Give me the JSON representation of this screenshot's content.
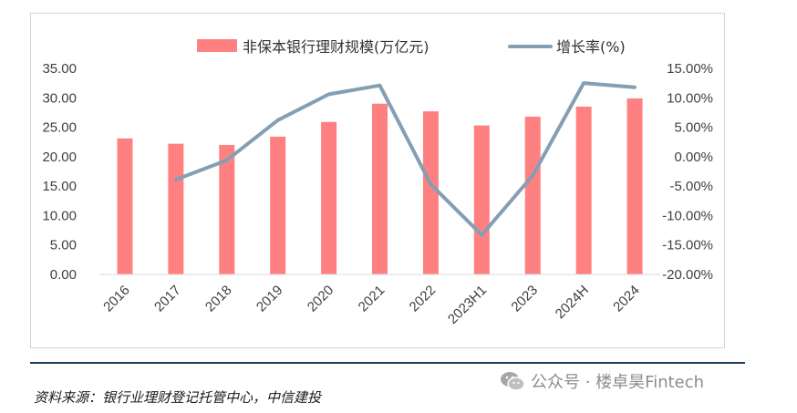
{
  "chart_data": {
    "type": "bar+line",
    "categories": [
      "2016",
      "2017",
      "2018",
      "2019",
      "2020",
      "2021",
      "2022",
      "2023H1",
      "2023",
      "2024H",
      "2024"
    ],
    "series": [
      {
        "name": "非保本银行理财规模(万亿元)",
        "type": "bar",
        "axis": "left",
        "color": "#ff8080",
        "values": [
          23.1,
          22.2,
          22.0,
          23.4,
          25.9,
          29.0,
          27.7,
          25.3,
          26.8,
          28.5,
          29.9
        ]
      },
      {
        "name": "增长率(%)",
        "type": "line",
        "axis": "right",
        "color": "#849fb3",
        "values": [
          null,
          -3.9,
          -0.6,
          6.2,
          10.6,
          12.1,
          -4.7,
          -13.3,
          -3.2,
          12.5,
          11.8
        ]
      }
    ],
    "left_axis": {
      "min": 0,
      "max": 35,
      "tick_labels": [
        "35.00",
        "30.00",
        "25.00",
        "20.00",
        "15.00",
        "10.00",
        "5.00",
        "0.00"
      ]
    },
    "right_axis": {
      "min": -20,
      "max": 15,
      "tick_labels": [
        "15.00%",
        "10.00%",
        "5.00%",
        "0.00%",
        "-5.00%",
        "-10.00%",
        "-15.00%",
        "-20.00%"
      ]
    },
    "legend_position": "top",
    "grid": false
  },
  "footer": {
    "source": "资料来源：银行业理财登记托管中心，中信建投",
    "watermark": "公众号 · 楼卓昊Fintech"
  }
}
